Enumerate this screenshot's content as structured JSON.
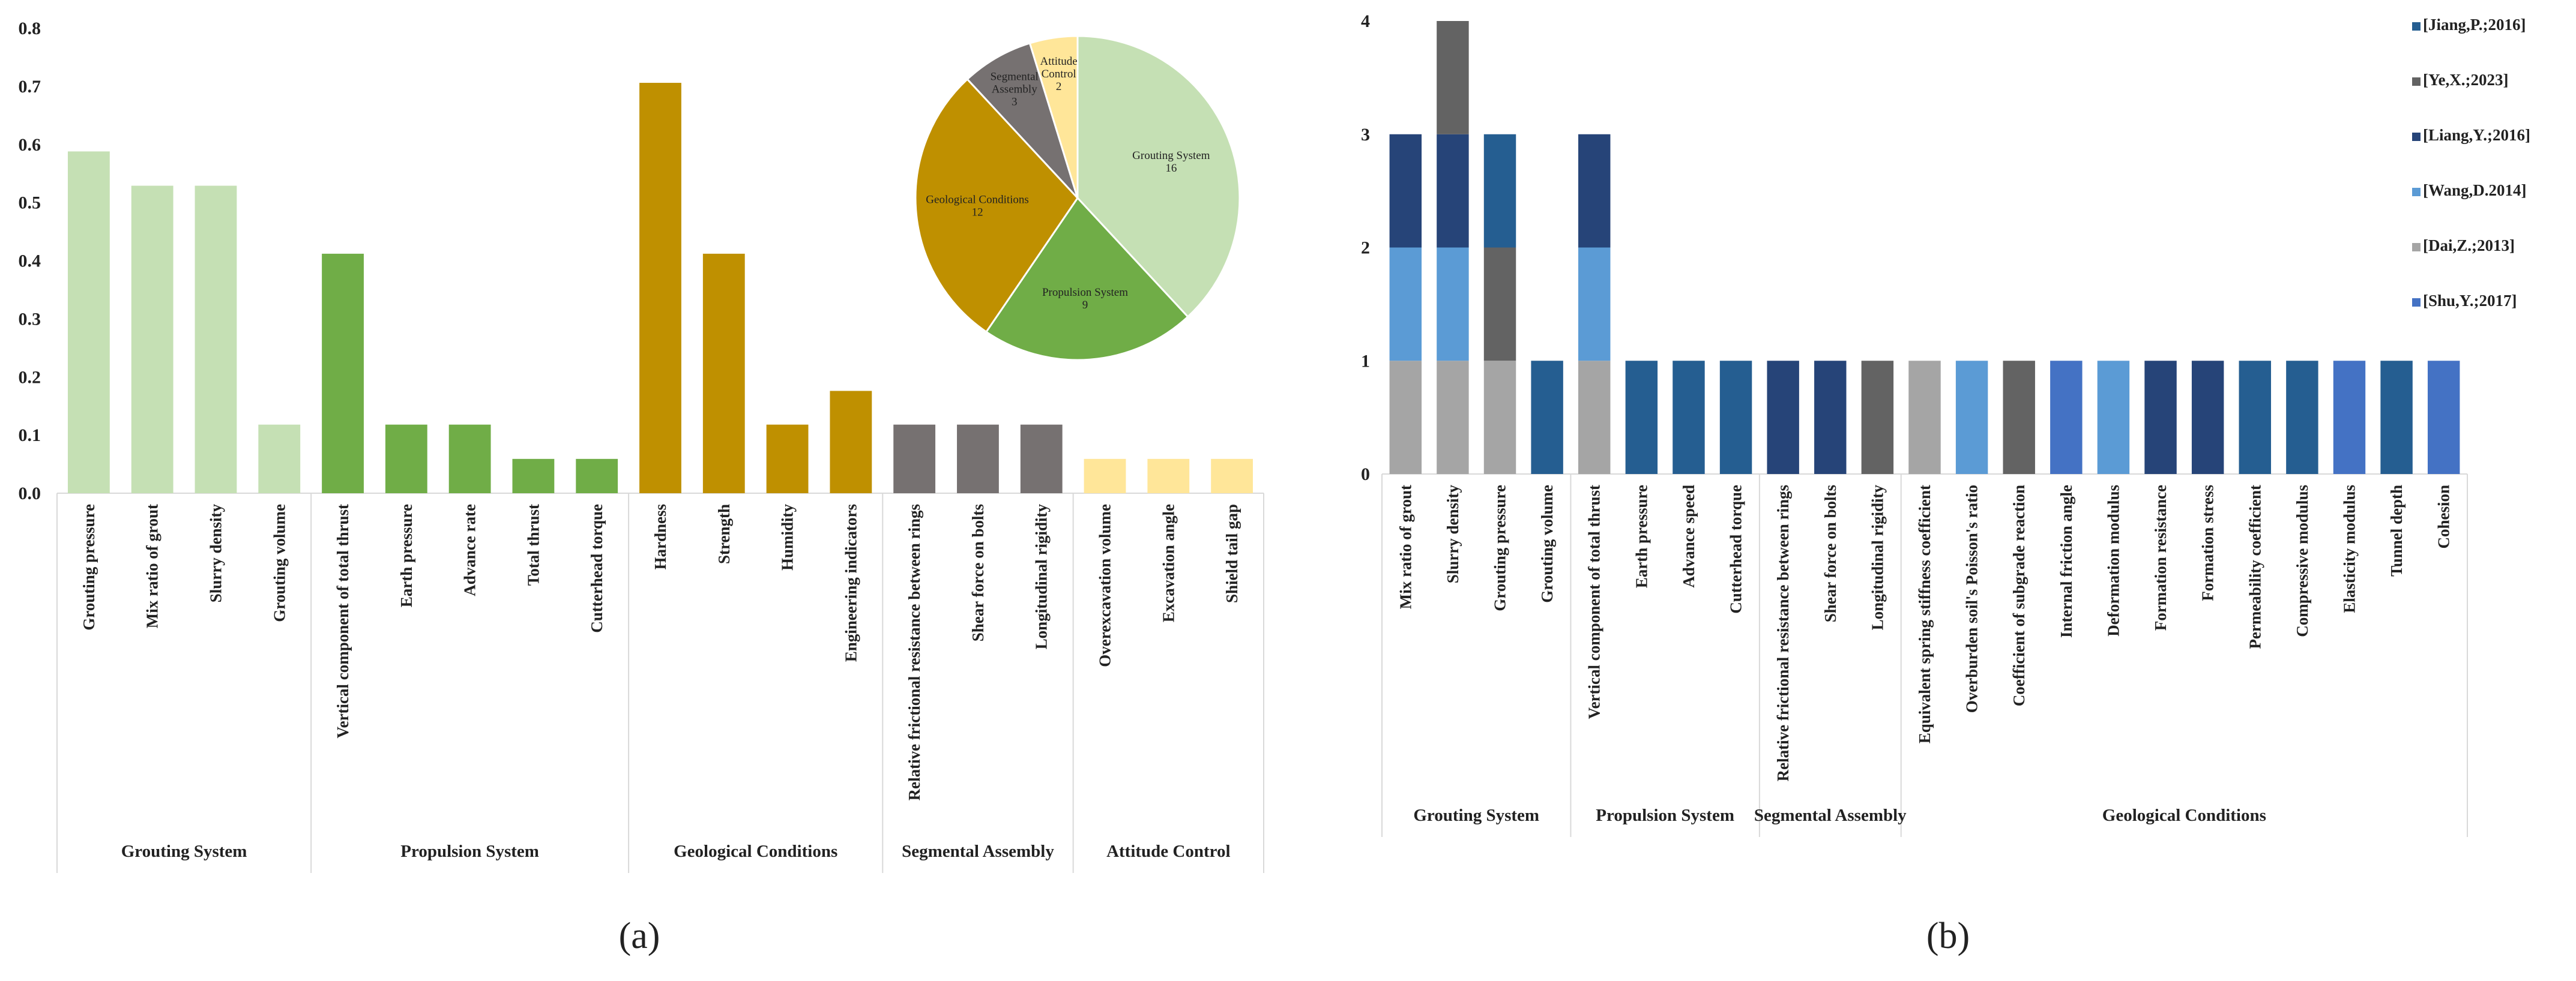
{
  "chart_data": [
    {
      "panel_label": "(a)",
      "type": "bar",
      "ylim": [
        0,
        0.8
      ],
      "yticks": [
        "0.0",
        "0.1",
        "0.2",
        "0.3",
        "0.4",
        "0.5",
        "0.6",
        "0.7",
        "0.8"
      ],
      "grid": false,
      "groups": [
        {
          "name": "Grouting System",
          "color": "#c5e0b4",
          "items": [
            {
              "label": "Grouting pressure",
              "value": 0.588
            },
            {
              "label": "Mix ratio of grout",
              "value": 0.529
            },
            {
              "label": "Slurry density",
              "value": 0.529
            },
            {
              "label": "Grouting volume",
              "value": 0.118
            }
          ]
        },
        {
          "name": "Propulsion System",
          "color": "#70ad47",
          "items": [
            {
              "label": "Vertical component of total thrust",
              "value": 0.412
            },
            {
              "label": "Earth pressure",
              "value": 0.118
            },
            {
              "label": "Advance rate",
              "value": 0.118
            },
            {
              "label": "Total thrust",
              "value": 0.059
            },
            {
              "label": "Cutterhead torque",
              "value": 0.059
            }
          ]
        },
        {
          "name": "Geological Conditions",
          "color": "#bf9000",
          "items": [
            {
              "label": "Hardness",
              "value": 0.706
            },
            {
              "label": "Strength",
              "value": 0.412
            },
            {
              "label": "Humidity",
              "value": 0.118
            },
            {
              "label": "Engineering indicators",
              "value": 0.176
            }
          ]
        },
        {
          "name": "Segmental Assembly",
          "color": "#767171",
          "items": [
            {
              "label": "Relative frictional resistance between rings",
              "value": 0.118
            },
            {
              "label": "Shear force on bolts",
              "value": 0.118
            },
            {
              "label": "Longitudinal rigidity",
              "value": 0.118
            }
          ]
        },
        {
          "name": "Attitude Control",
          "color": "#ffe699",
          "items": [
            {
              "label": "Overexcavation volume",
              "value": 0.059
            },
            {
              "label": "Excavation angle",
              "value": 0.059
            },
            {
              "label": "Shield tail gap",
              "value": 0.059
            }
          ]
        }
      ],
      "inset_pie": {
        "type": "pie",
        "slices": [
          {
            "label": "Grouting System",
            "value": 16,
            "color": "#c5e0b4"
          },
          {
            "label": "Propulsion System",
            "value": 9,
            "color": "#70ad47"
          },
          {
            "label": "Geological Conditions",
            "value": 12,
            "color": "#bf9000"
          },
          {
            "label": "Segmental Assembly",
            "value": 3,
            "color": "#767171"
          },
          {
            "label": "Attitude Control",
            "value": 2,
            "color": "#ffe699"
          }
        ]
      }
    },
    {
      "panel_label": "(b)",
      "type": "bar",
      "stacked": true,
      "ylim": [
        0,
        4
      ],
      "yticks": [
        "0",
        "1",
        "2",
        "3",
        "4"
      ],
      "grid": false,
      "legend": [
        {
          "label": "[Jiang,P.;2016]",
          "color": "#255e91"
        },
        {
          "label": "[Ye,X.;2023]",
          "color": "#636363"
        },
        {
          "label": "[Liang,Y.;2016]",
          "color": "#264478"
        },
        {
          "label": "[Wang,D.2014]",
          "color": "#5b9bd5"
        },
        {
          "label": "[Dai,Z.;2013]",
          "color": "#a5a5a5"
        },
        {
          "label": "[Shu,Y.;2017]",
          "color": "#4472c4"
        }
      ],
      "groups": [
        {
          "name": "Grouting System",
          "items": [
            {
              "label": "Mix ratio of grout",
              "stack": [
                "[Dai,Z.;2013]",
                "[Wang,D.2014]",
                "[Liang,Y.;2016]"
              ]
            },
            {
              "label": "Slurry density",
              "stack": [
                "[Dai,Z.;2013]",
                "[Wang,D.2014]",
                "[Liang,Y.;2016]",
                "[Ye,X.;2023]"
              ]
            },
            {
              "label": "Grouting pressure",
              "stack": [
                "[Dai,Z.;2013]",
                "[Ye,X.;2023]",
                "[Jiang,P.;2016]"
              ]
            },
            {
              "label": "Grouting volume",
              "stack": [
                "[Jiang,P.;2016]"
              ]
            }
          ]
        },
        {
          "name": "Propulsion System",
          "items": [
            {
              "label": "Vertical component of total thrust",
              "stack": [
                "[Dai,Z.;2013]",
                "[Wang,D.2014]",
                "[Liang,Y.;2016]"
              ]
            },
            {
              "label": "Earth pressure",
              "stack": [
                "[Jiang,P.;2016]"
              ]
            },
            {
              "label": "Advance speed",
              "stack": [
                "[Jiang,P.;2016]"
              ]
            },
            {
              "label": "Cutterhead torque",
              "stack": [
                "[Jiang,P.;2016]"
              ]
            }
          ]
        },
        {
          "name": "Segmental Assembly",
          "items": [
            {
              "label": "Relative frictional resistance between rings",
              "stack": [
                "[Liang,Y.;2016]"
              ]
            },
            {
              "label": "Shear force on bolts",
              "stack": [
                "[Liang,Y.;2016]"
              ]
            },
            {
              "label": "Longitudinal rigidity",
              "stack": [
                "[Ye,X.;2023]"
              ]
            }
          ]
        },
        {
          "name": "Geological Conditions",
          "items": [
            {
              "label": "Equivalent spring stiffness coefficient",
              "stack": [
                "[Dai,Z.;2013]"
              ]
            },
            {
              "label": "Overburden soil's Poisson's ratio",
              "stack": [
                "[Wang,D.2014]"
              ]
            },
            {
              "label": "Coefficient of subgrade reaction",
              "stack": [
                "[Ye,X.;2023]"
              ]
            },
            {
              "label": "Internal friction angle",
              "stack": [
                "[Shu,Y.;2017]"
              ]
            },
            {
              "label": "Deformation modulus",
              "stack": [
                "[Wang,D.2014]"
              ]
            },
            {
              "label": "Formation resistance",
              "stack": [
                "[Liang,Y.;2016]"
              ]
            },
            {
              "label": "Formation stress",
              "stack": [
                "[Liang,Y.;2016]"
              ]
            },
            {
              "label": "Permeability coefficient",
              "stack": [
                "[Jiang,P.;2016]"
              ]
            },
            {
              "label": "Compressive modulus",
              "stack": [
                "[Jiang,P.;2016]"
              ]
            },
            {
              "label": "Elasticity modulus",
              "stack": [
                "[Shu,Y.;2017]"
              ]
            },
            {
              "label": "Tunnel depth",
              "stack": [
                "[Jiang,P.;2016]"
              ]
            },
            {
              "label": "Cohesion",
              "stack": [
                "[Shu,Y.;2017]"
              ]
            }
          ]
        }
      ]
    }
  ]
}
